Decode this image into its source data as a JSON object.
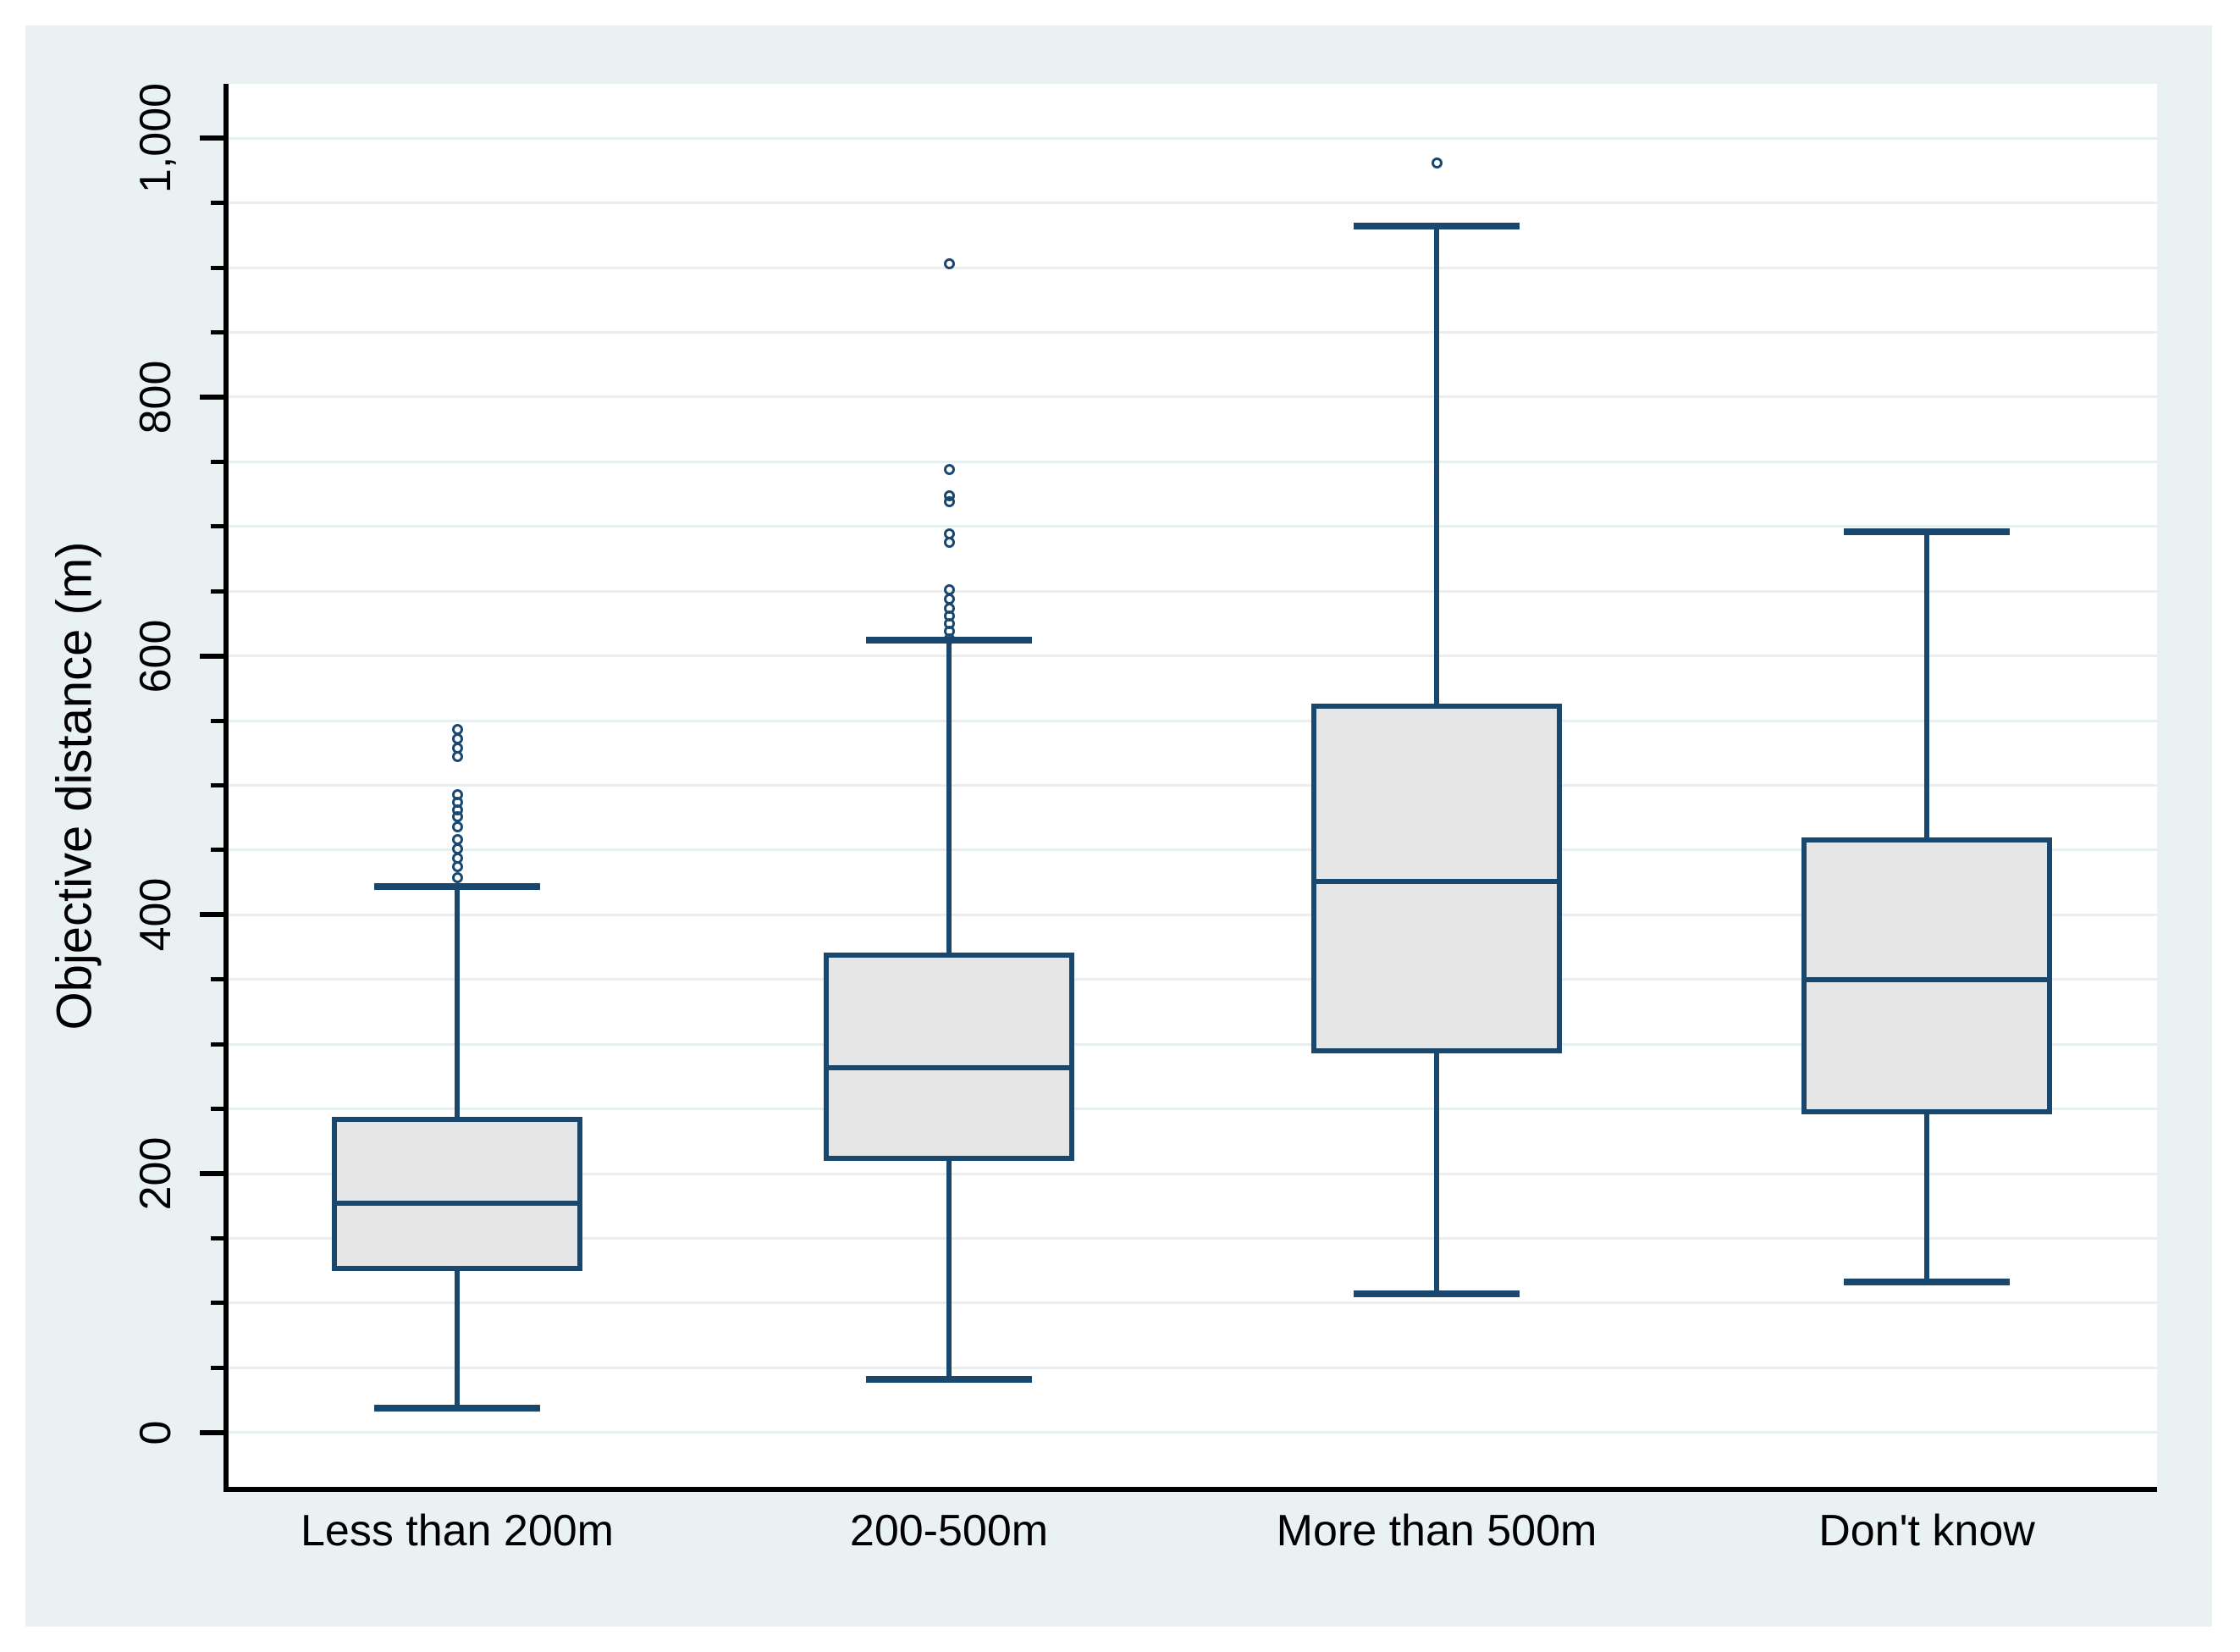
{
  "style": {
    "page_background": "#ffffff",
    "graph_background": "#eaf1f3",
    "plot_background": "#ffffff",
    "grid_color": "#e8eff1",
    "box_fill": "#e6e6e6",
    "box_line_color": "#1a476e",
    "axis_color": "#000000",
    "text_color": "#000000"
  },
  "chart_data": {
    "type": "boxplot",
    "title": "",
    "xlabel": "",
    "ylabel": "Objective distance (m)",
    "ylim": [
      -42,
      1042
    ],
    "grid": true,
    "grid_interval": 50,
    "y_ticks": {
      "major": [
        {
          "value": 0,
          "label": "0"
        },
        {
          "value": 200,
          "label": "200"
        },
        {
          "value": 400,
          "label": "400"
        },
        {
          "value": 600,
          "label": "600"
        },
        {
          "value": 800,
          "label": "800"
        },
        {
          "value": 1000,
          "label": "1,000"
        }
      ],
      "minor_step": 50,
      "minor_min": 0,
      "minor_max": 1000
    },
    "categories": [
      "Less than 200m",
      "200-500m",
      "More than 500m",
      "Don't know"
    ],
    "boxes": [
      {
        "category": "Less than 200m",
        "whisker_low": 19,
        "q1": 125,
        "median": 177,
        "q3": 244,
        "whisker_high": 422,
        "outliers": [
          429,
          437,
          444,
          451,
          458,
          468,
          476,
          481,
          487,
          493,
          522,
          529,
          536,
          543
        ]
      },
      {
        "category": "200-500m",
        "whisker_low": 41,
        "q1": 210,
        "median": 282,
        "q3": 371,
        "whisker_high": 612,
        "outliers": [
          613,
          619,
          625,
          631,
          637,
          644,
          651,
          688,
          694,
          719,
          724,
          744,
          903
        ]
      },
      {
        "category": "More than 500m",
        "whisker_low": 107,
        "q1": 293,
        "median": 426,
        "q3": 563,
        "whisker_high": 932,
        "outliers": [
          981
        ]
      },
      {
        "category": "Don't know",
        "whisker_low": 116,
        "q1": 246,
        "median": 350,
        "q3": 460,
        "whisker_high": 696,
        "outliers": []
      }
    ]
  }
}
